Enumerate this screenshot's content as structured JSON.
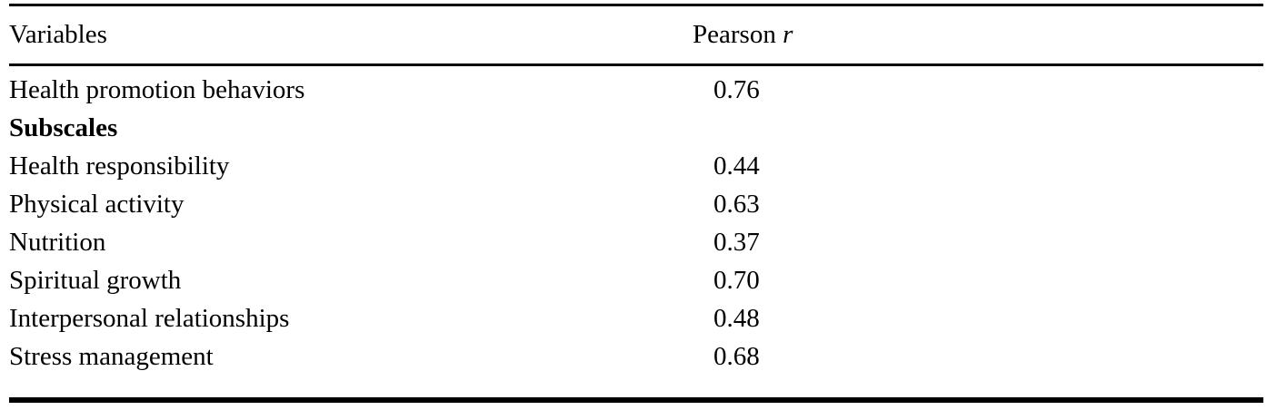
{
  "page": {
    "background_color": "#ffffff",
    "text_color": "#000000"
  },
  "table": {
    "header": {
      "col1_label": "Variables",
      "col2_label_main": "Pearson ",
      "col2_label_stat": "r"
    },
    "rows": [
      {
        "label": "Health promotion behaviors",
        "value": "0.76",
        "style": "normal"
      },
      {
        "label": "Subscales",
        "value": "",
        "style": "bold-section"
      },
      {
        "label": "Health responsibility",
        "value": "0.44",
        "style": "normal"
      },
      {
        "label": "Physical activity",
        "value": "0.63",
        "style": "normal"
      },
      {
        "label": "Nutrition",
        "value": "0.37",
        "style": "normal"
      },
      {
        "label": "Spiritual growth",
        "value": "0.70",
        "style": "normal"
      },
      {
        "label": "Interpersonal relationships",
        "value": "0.48",
        "style": "normal"
      },
      {
        "label": "Stress management",
        "value": "0.68",
        "style": "normal"
      }
    ]
  }
}
